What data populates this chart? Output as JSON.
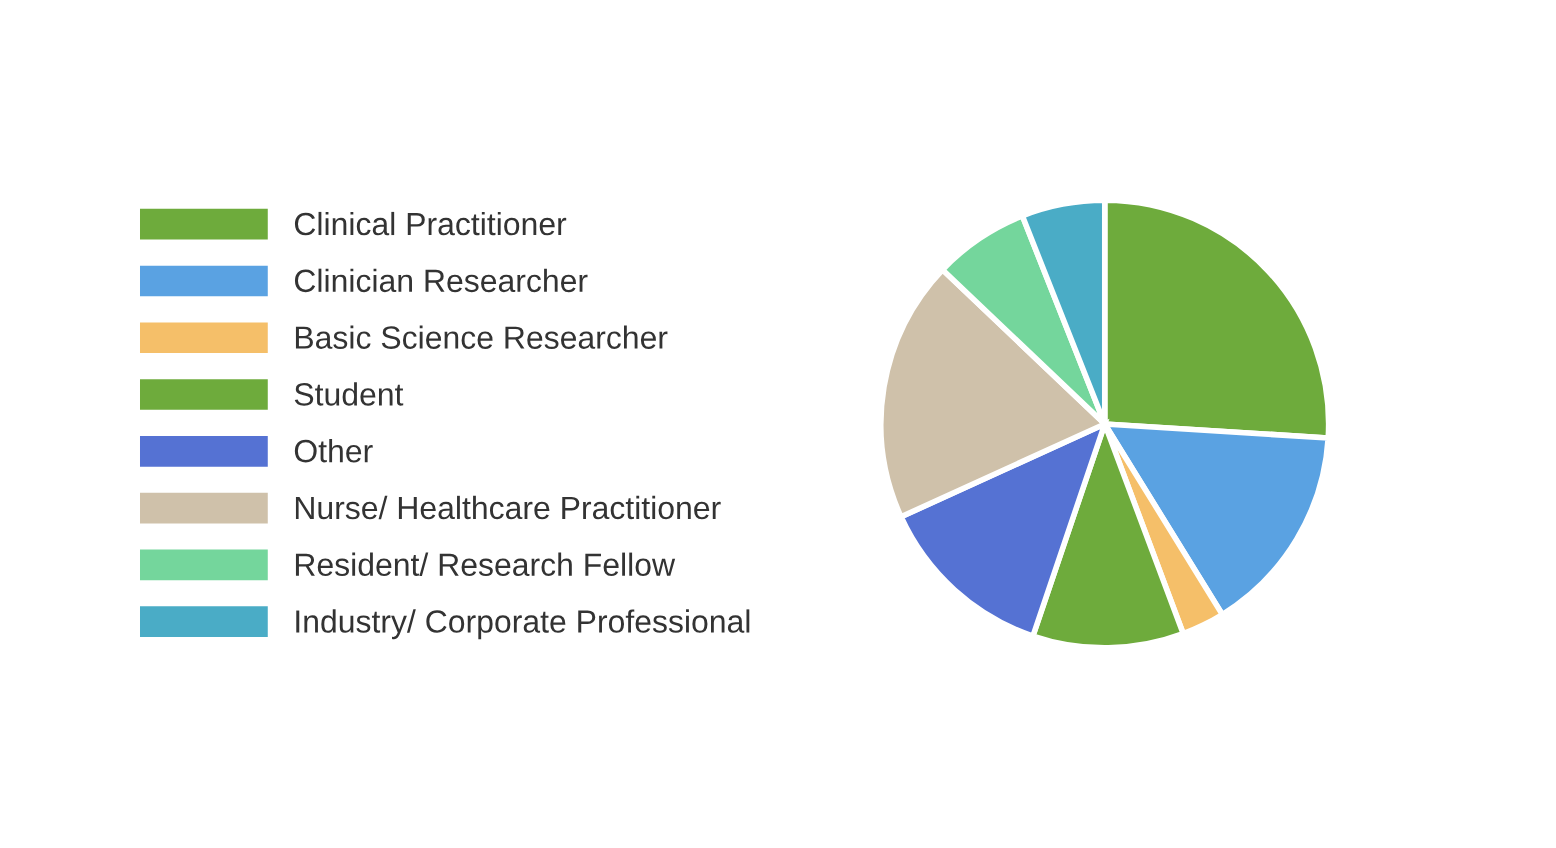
{
  "chart_data": {
    "type": "pie",
    "categories": [
      "Clinical Practitioner",
      "Clinician Researcher",
      "Basic Science Researcher",
      "Student",
      "Other",
      "Nurse/ Healthcare Practitioner",
      "Resident/ Research Fellow",
      "Industry/ Corporate Professional"
    ],
    "values": [
      26.0,
      15.2,
      3.1,
      10.9,
      13.0,
      18.9,
      6.9,
      6.0
    ],
    "colors": [
      "#6eab3c",
      "#5aa2e2",
      "#f5bf69",
      "#6eab3c",
      "#5572d3",
      "#cfc1aa",
      "#74d69c",
      "#4aacc6"
    ],
    "legend": "left"
  }
}
